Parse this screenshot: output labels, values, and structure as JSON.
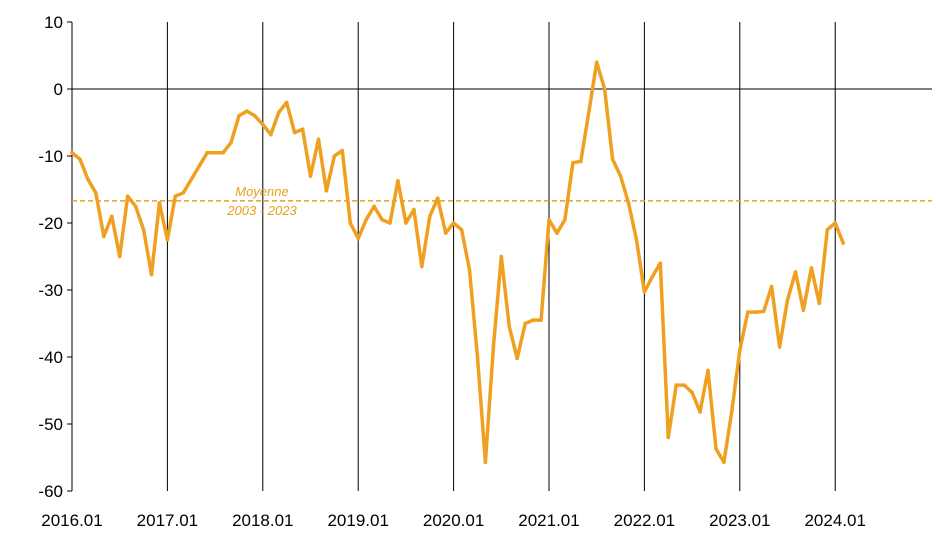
{
  "chart_data": {
    "type": "line",
    "title": "",
    "xlabel": "",
    "ylabel": "",
    "ylim": [
      -60,
      10
    ],
    "yticks": [
      10,
      0,
      -10,
      -20,
      -30,
      -40,
      -50,
      -60
    ],
    "xticks": [
      "2016.01",
      "2017.01",
      "2018.01",
      "2019.01",
      "2020.01",
      "2021.01",
      "2022.01",
      "2023.01",
      "2024.01"
    ],
    "grid": "vertical lines at each year",
    "legend": "none",
    "colors": {
      "series": "#F0A020",
      "average": "#E5A020",
      "axis": "#000000"
    },
    "average": {
      "value": -16.7,
      "label_line1": "Moyenne",
      "label_line2": "2003 - 2023"
    },
    "series": [
      {
        "x": [
          "2016.01",
          "2016.02",
          "2016.03",
          "2016.04",
          "2016.05",
          "2016.06",
          "2016.07",
          "2016.08",
          "2016.09",
          "2016.10",
          "2016.11",
          "2016.12",
          "2017.01",
          "2017.02",
          "2017.03",
          "2017.04",
          "2017.05",
          "2017.06",
          "2017.07",
          "2017.08",
          "2017.09",
          "2017.10",
          "2017.11",
          "2017.12",
          "2018.01",
          "2018.02",
          "2018.03",
          "2018.04",
          "2018.05",
          "2018.06",
          "2018.07",
          "2018.08",
          "2018.09",
          "2018.10",
          "2018.11",
          "2018.12",
          "2019.01",
          "2019.02",
          "2019.03",
          "2019.04",
          "2019.05",
          "2019.06",
          "2019.07",
          "2019.08",
          "2019.09",
          "2019.10",
          "2019.11",
          "2019.12",
          "2020.01",
          "2020.02",
          "2020.03",
          "2020.04",
          "2020.05",
          "2020.06",
          "2020.07",
          "2020.08",
          "2020.09",
          "2020.10",
          "2020.11",
          "2020.12",
          "2021.01",
          "2021.02",
          "2021.03",
          "2021.04",
          "2021.05",
          "2021.06",
          "2021.07",
          "2021.08",
          "2021.09",
          "2021.10",
          "2021.11",
          "2021.12",
          "2022.01",
          "2022.02",
          "2022.03",
          "2022.04",
          "2022.05",
          "2022.06",
          "2022.07",
          "2022.08",
          "2022.09",
          "2022.10",
          "2022.11",
          "2022.12",
          "2023.01",
          "2023.02",
          "2023.03",
          "2023.04",
          "2023.05",
          "2023.06",
          "2023.07",
          "2023.08",
          "2023.09",
          "2023.10",
          "2023.11",
          "2023.12",
          "2024.01",
          "2024.02"
        ],
        "values": [
          -9.5,
          -10.5,
          -13.5,
          -15.5,
          -22,
          -19,
          -25,
          -16,
          -17.5,
          -21,
          -27.7,
          -17,
          -22.5,
          -16,
          -15.5,
          -13.5,
          -11.5,
          -9.5,
          -9.5,
          -9.5,
          -8,
          -4,
          -3.3,
          -4,
          -5.3,
          -6.8,
          -3.5,
          -2,
          -6.5,
          -6,
          -13,
          -7.5,
          -15.2,
          -10,
          -9.2,
          -20,
          -22.3,
          -19.5,
          -17.5,
          -19.5,
          -20,
          -13.7,
          -20,
          -18,
          -26.5,
          -19,
          -16.3,
          -21.5,
          -20,
          -21,
          -27,
          -40,
          -55.7,
          -38.5,
          -25,
          -35.5,
          -40.2,
          -35,
          -34.5,
          -34.5,
          -19.5,
          -21.5,
          -19.5,
          -11,
          -10.8,
          -3.5,
          4,
          0,
          -10.5,
          -13,
          -17,
          -22.5,
          -30.3,
          -28,
          -26,
          -52,
          -44.2,
          -44.2,
          -45.3,
          -48.2,
          -42,
          -53.7,
          -55.7,
          -48,
          -39,
          -33.3,
          -33.3,
          -33.2,
          -29.5,
          -38.5,
          -31.5,
          -27.3,
          -33,
          -26.7,
          -32,
          -21,
          -20,
          -23
        ]
      }
    ]
  }
}
